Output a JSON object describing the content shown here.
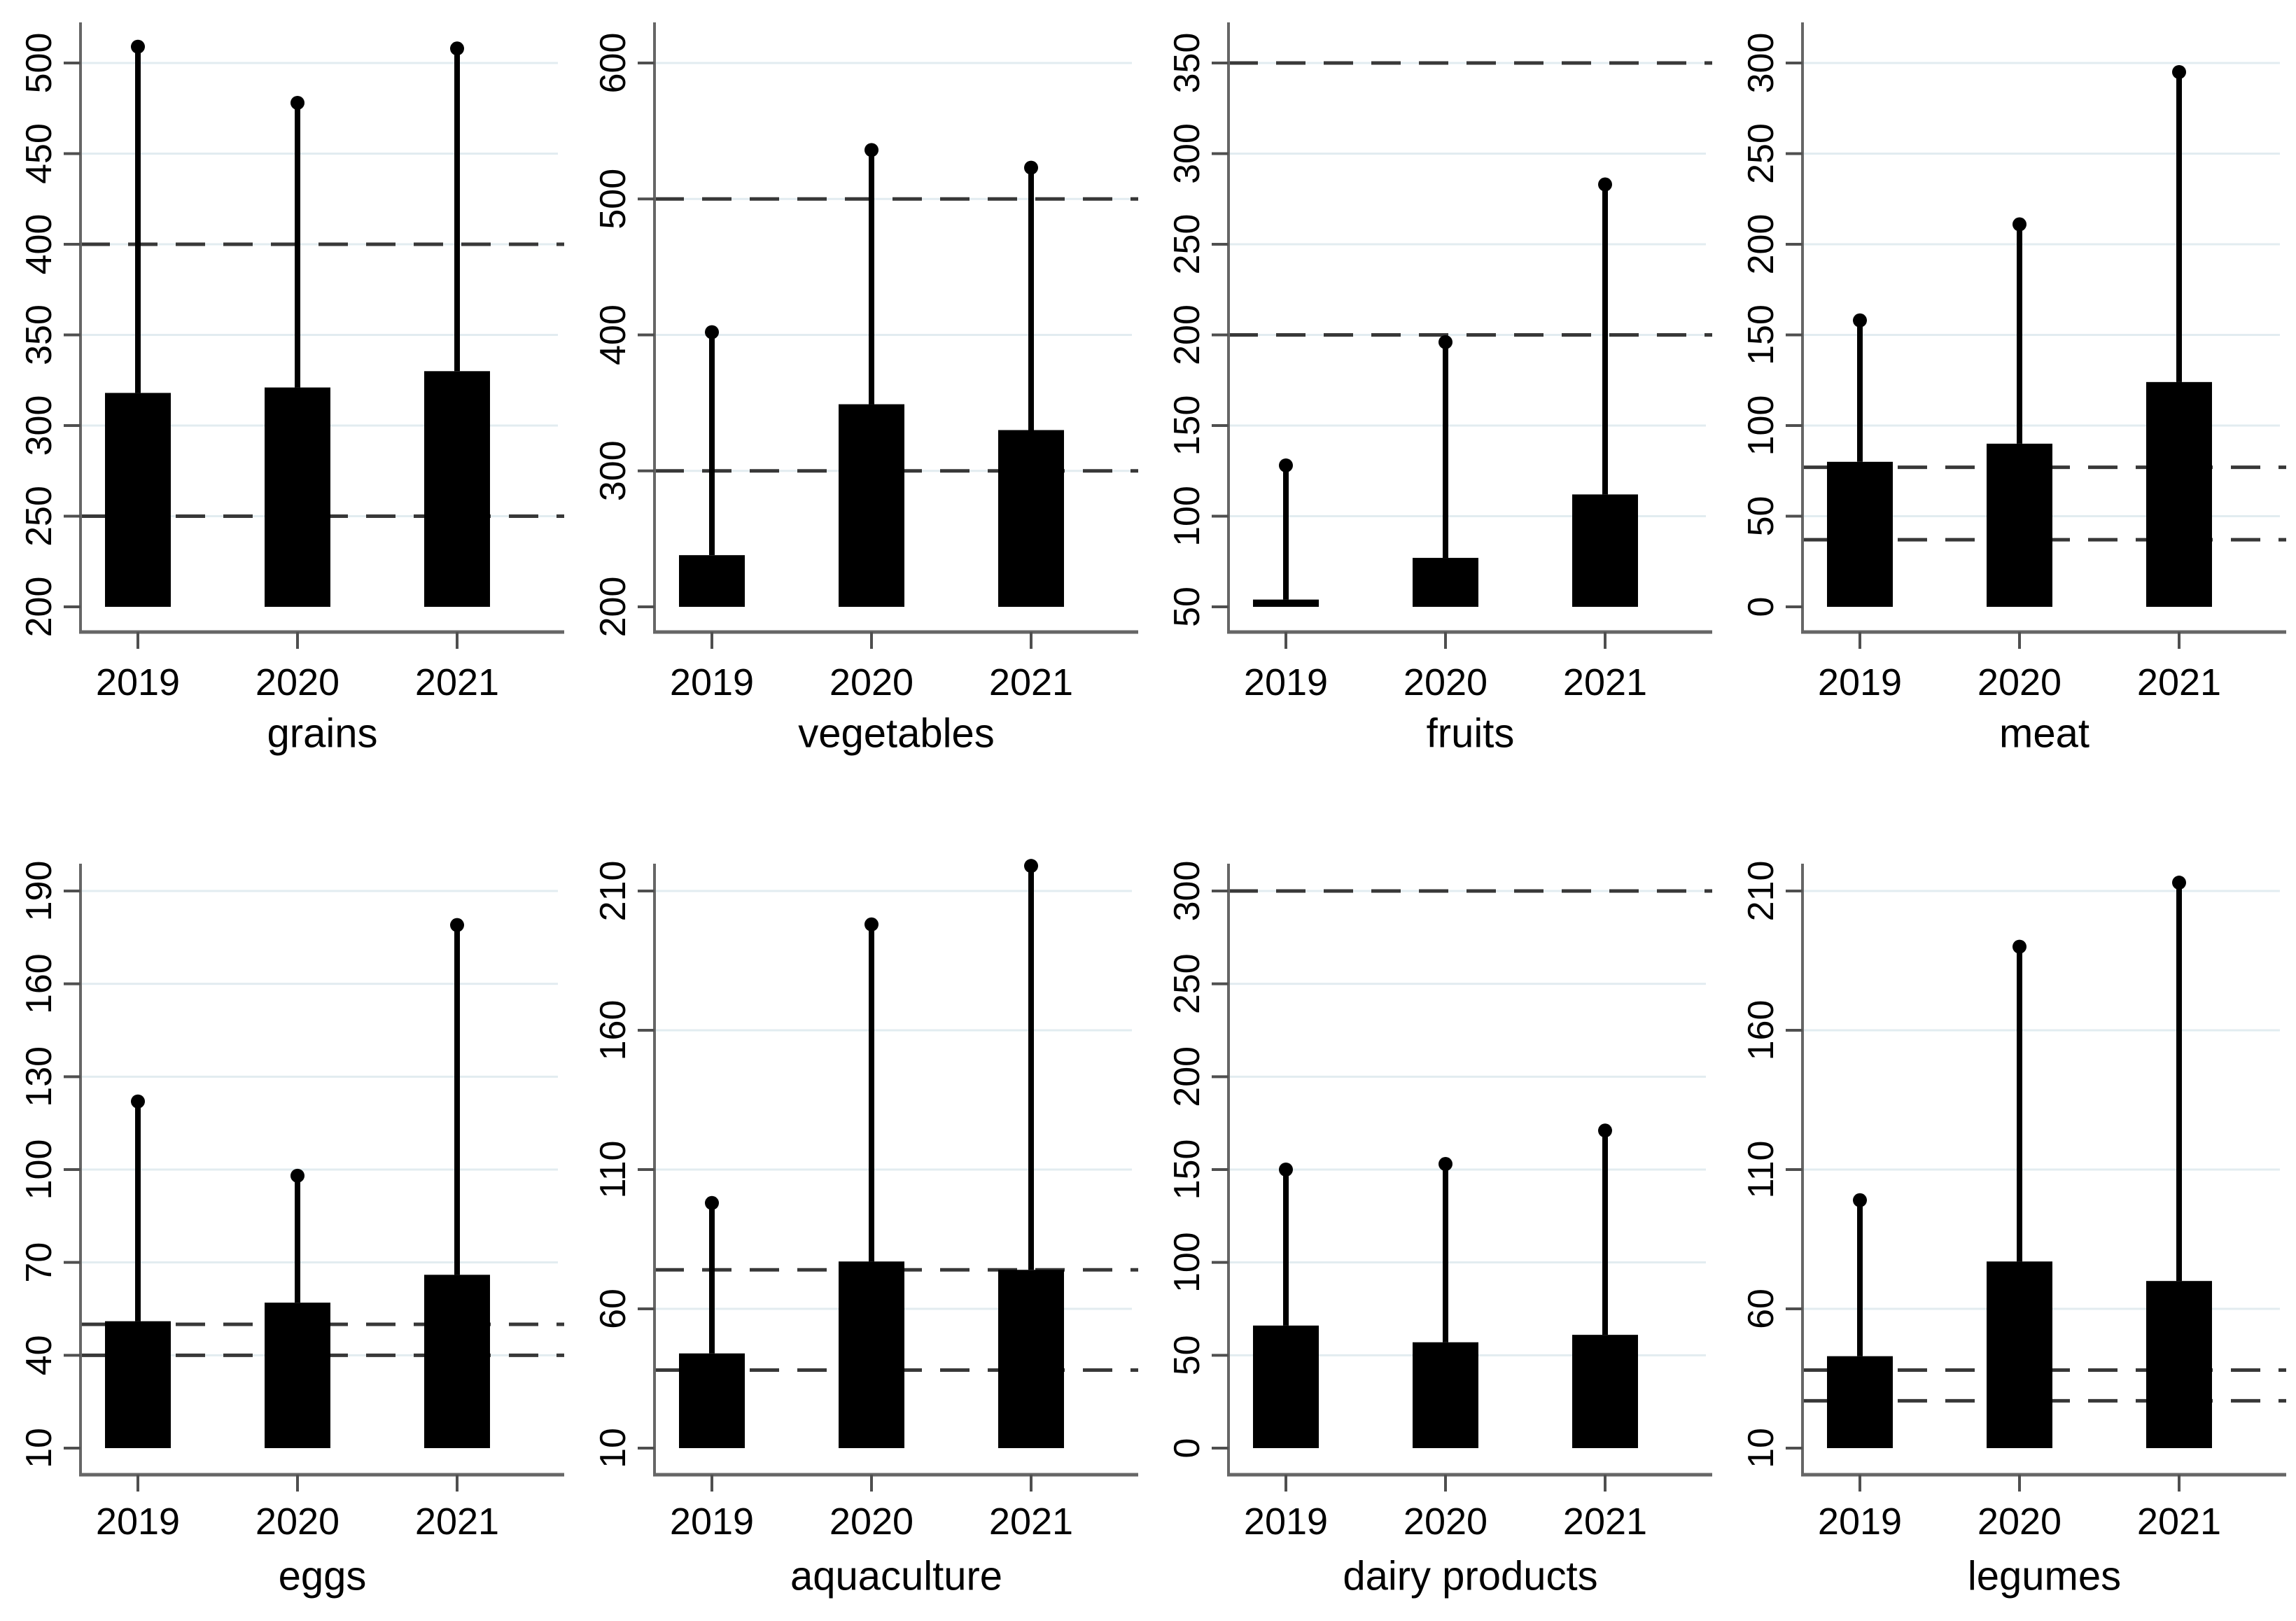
{
  "figure": {
    "description": "Grid of eight black bar charts with upper whiskers and dashed reference lines, by year",
    "years_axis_note": "each panel shows bars for 2019, 2020, 2021"
  },
  "styles": {
    "background": "#ffffff",
    "bar_color": "#000000",
    "grid_color": "#e2ecf0",
    "axis_color": "#666666",
    "tick_color": "#4f4f4f",
    "dash_color": "#383838",
    "text_color": "#000000"
  },
  "chart_data": [
    {
      "type": "bar",
      "title": "grains",
      "categories": [
        "2019",
        "2020",
        "2021"
      ],
      "bar_values": [
        318,
        321,
        330
      ],
      "whisker_values": [
        509,
        478,
        508
      ],
      "dashed_lines": [
        400,
        250
      ],
      "y_ticks": [
        200,
        250,
        300,
        350,
        400,
        450,
        500
      ],
      "y_base": 200,
      "ylim": [
        200,
        522
      ],
      "grid": true,
      "legend": "none"
    },
    {
      "type": "bar",
      "title": "vegetables",
      "categories": [
        "2019",
        "2020",
        "2021"
      ],
      "bar_values": [
        238,
        349,
        330
      ],
      "whisker_values": [
        402,
        536,
        523
      ],
      "dashed_lines": [
        500,
        300
      ],
      "y_ticks": [
        200,
        300,
        400,
        500,
        600
      ],
      "y_base": 200,
      "ylim": [
        200,
        630
      ],
      "grid": true,
      "legend": "none"
    },
    {
      "type": "bar",
      "title": "fruits",
      "categories": [
        "2019",
        "2020",
        "2021"
      ],
      "bar_values": [
        54,
        77,
        112
      ],
      "whisker_values": [
        128,
        196,
        283
      ],
      "dashed_lines": [
        350,
        200
      ],
      "y_ticks": [
        50,
        100,
        150,
        200,
        250,
        300,
        350
      ],
      "y_base": 50,
      "ylim": [
        50,
        372
      ],
      "grid": true,
      "legend": "none"
    },
    {
      "type": "bar",
      "title": "meat",
      "categories": [
        "2019",
        "2020",
        "2021"
      ],
      "bar_values": [
        80,
        90,
        124
      ],
      "whisker_values": [
        158,
        211,
        295
      ],
      "dashed_lines": [
        77,
        37
      ],
      "y_ticks": [
        0,
        50,
        100,
        150,
        200,
        250,
        300
      ],
      "y_base": 0,
      "ylim": [
        0,
        322
      ],
      "grid": true,
      "legend": "none"
    },
    {
      "type": "bar",
      "title": "eggs",
      "categories": [
        "2019",
        "2020",
        "2021"
      ],
      "bar_values": [
        51,
        57,
        66
      ],
      "whisker_values": [
        122,
        98,
        179
      ],
      "dashed_lines": [
        50,
        40
      ],
      "y_ticks": [
        10,
        40,
        70,
        100,
        130,
        160,
        190
      ],
      "y_base": 10,
      "ylim": [
        10,
        199
      ],
      "grid": true,
      "legend": "none"
    },
    {
      "type": "bar",
      "title": "aquaculture",
      "categories": [
        "2019",
        "2020",
        "2021"
      ],
      "bar_values": [
        44,
        77,
        74
      ],
      "whisker_values": [
        98,
        198,
        219
      ],
      "dashed_lines": [
        74,
        38
      ],
      "y_ticks": [
        10,
        60,
        110,
        160,
        210
      ],
      "y_base": 10,
      "ylim": [
        10,
        220
      ],
      "grid": true,
      "legend": "none"
    },
    {
      "type": "bar",
      "title": "dairy products",
      "categories": [
        "2019",
        "2020",
        "2021"
      ],
      "bar_values": [
        66,
        57,
        61
      ],
      "whisker_values": [
        150,
        153,
        171
      ],
      "dashed_lines": [
        300
      ],
      "y_ticks": [
        0,
        50,
        100,
        150,
        200,
        250,
        300
      ],
      "y_base": 0,
      "ylim": [
        0,
        315
      ],
      "grid": true,
      "legend": "none"
    },
    {
      "type": "bar",
      "title": "legumes",
      "categories": [
        "2019",
        "2020",
        "2021"
      ],
      "bar_values": [
        43,
        77,
        70
      ],
      "whisker_values": [
        99,
        190,
        213
      ],
      "dashed_lines": [
        38,
        27
      ],
      "y_ticks": [
        10,
        60,
        110,
        160,
        210
      ],
      "y_base": 10,
      "ylim": [
        10,
        220
      ],
      "grid": true,
      "legend": "none"
    }
  ]
}
